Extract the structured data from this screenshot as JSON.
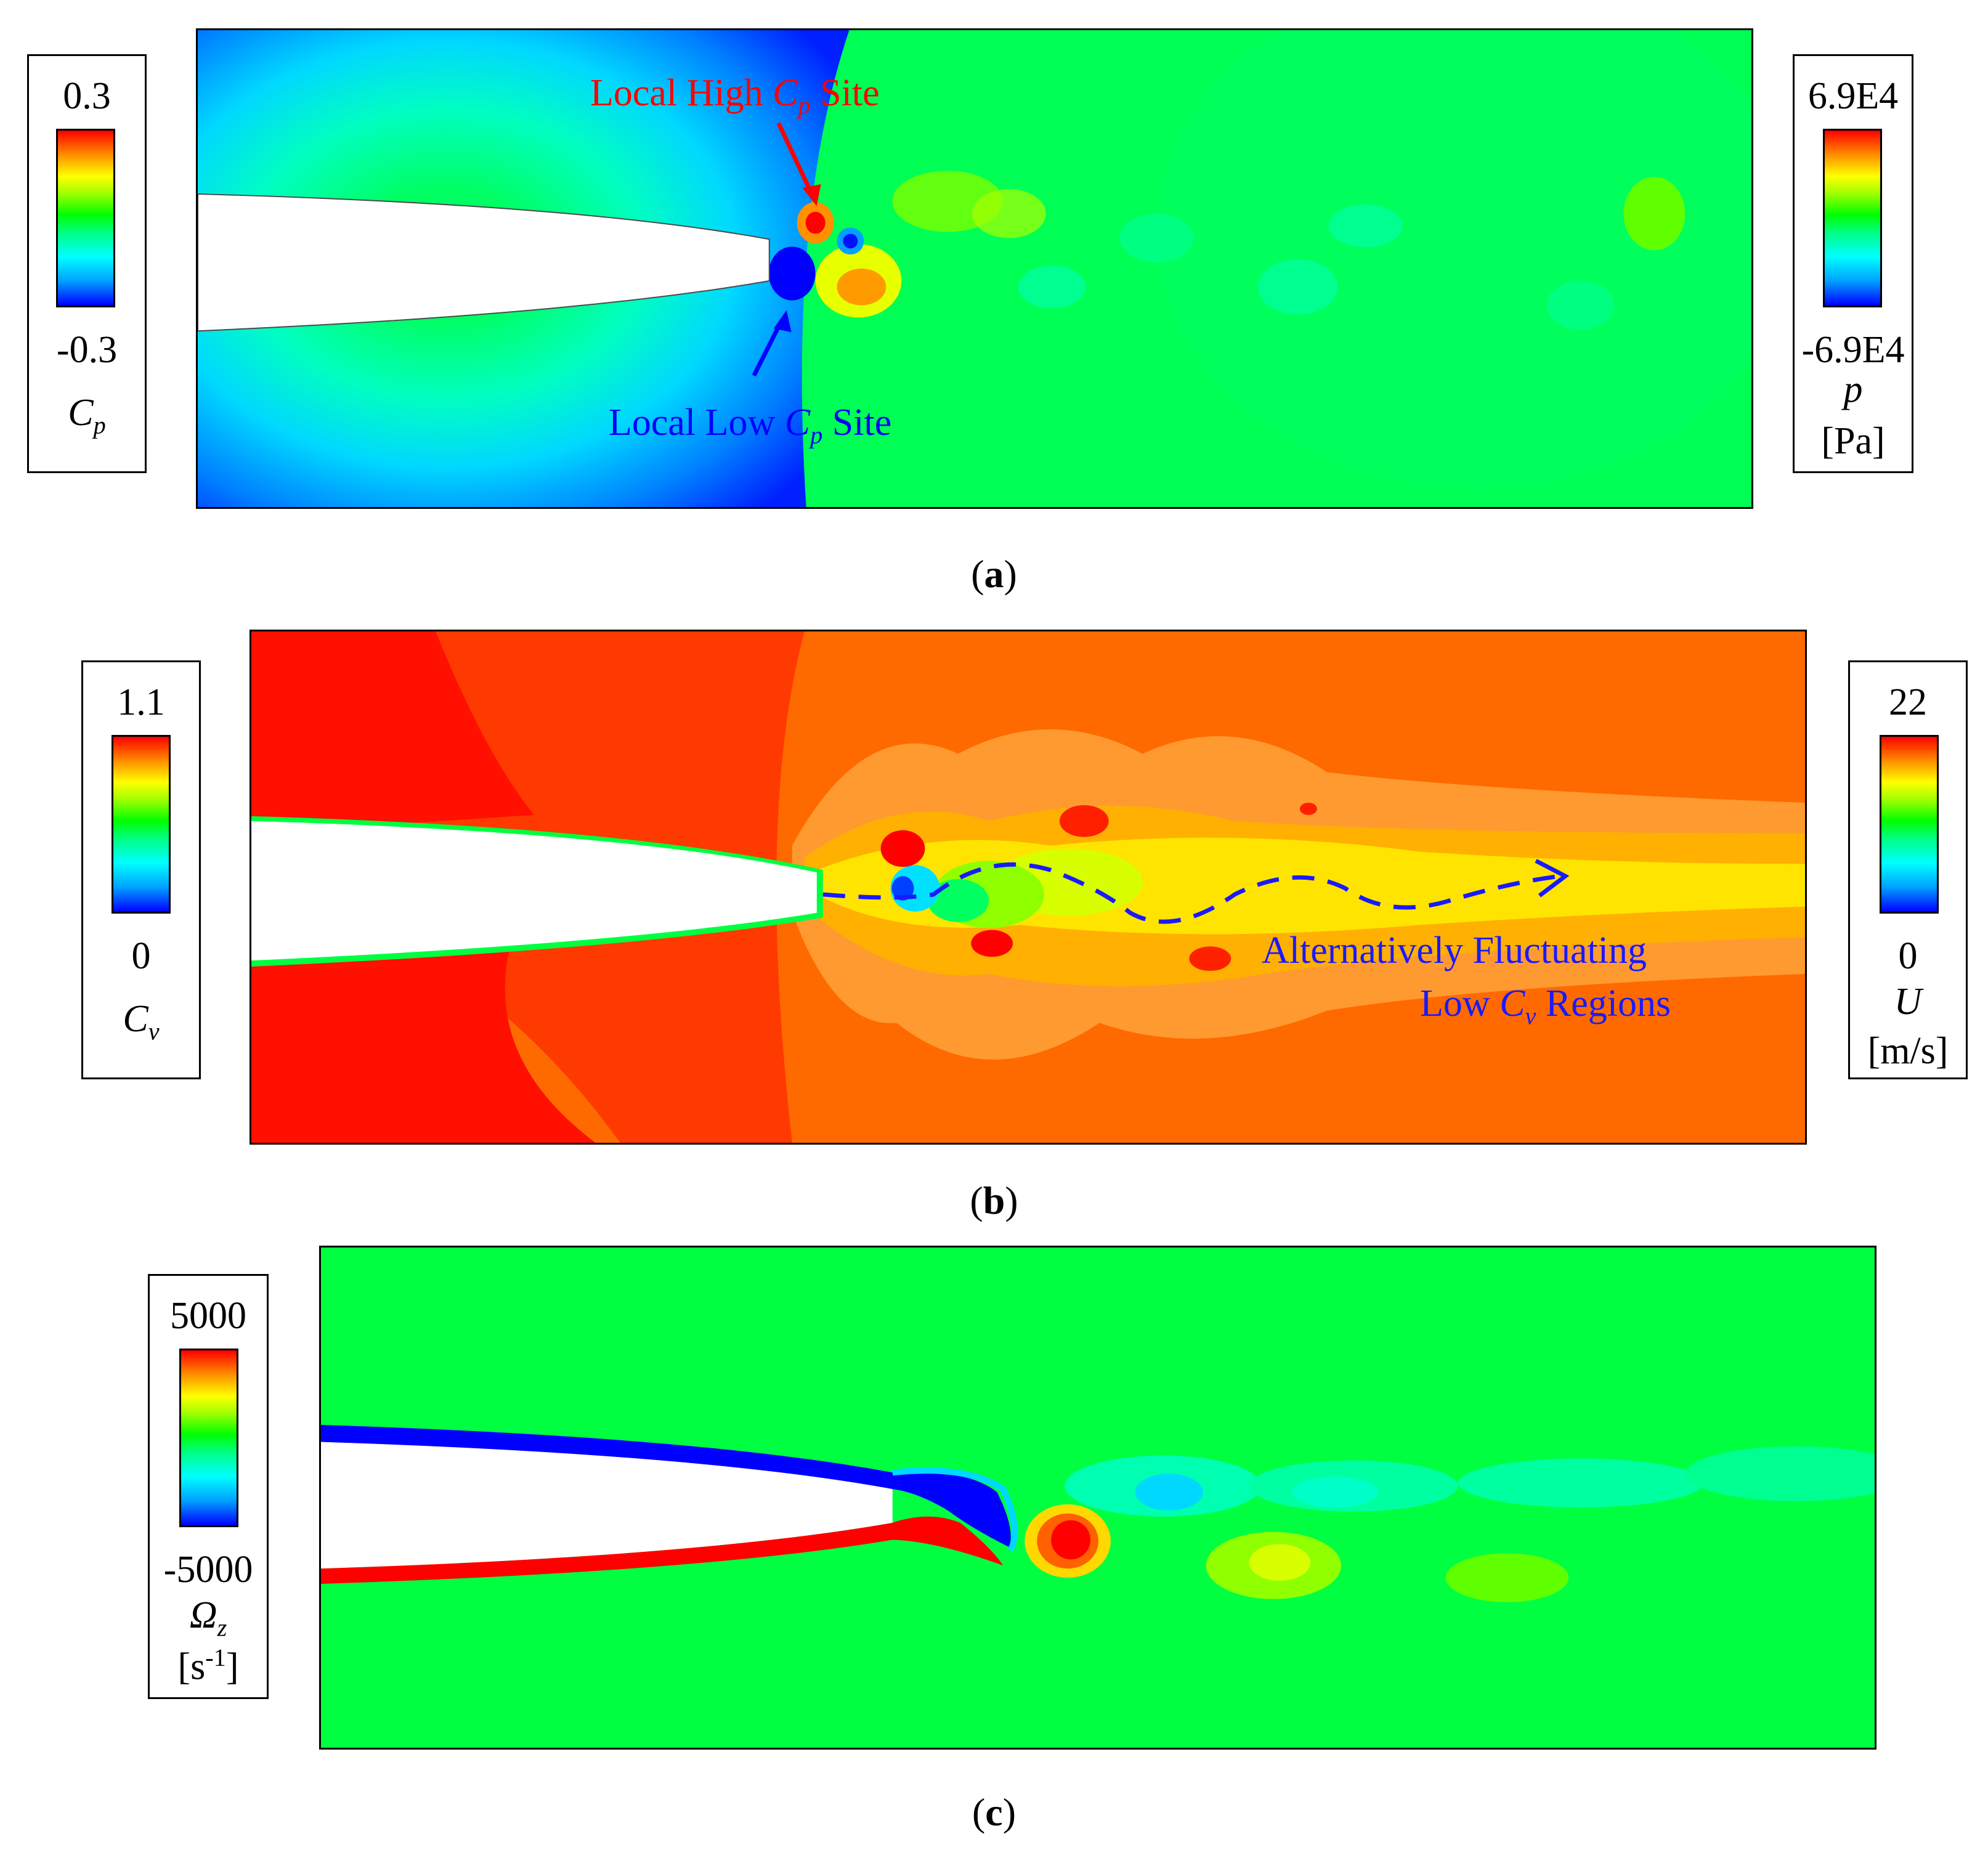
{
  "panel_a": {
    "caption_letter": "a",
    "legend_left": {
      "max": "0.3",
      "min": "-0.3",
      "symbol": "C",
      "symbol_sub": "p"
    },
    "legend_right": {
      "max": "6.9E4",
      "min": "-6.9E4",
      "symbol": "p",
      "unit": "[Pa]"
    },
    "annotation_high": {
      "prefix": "Local High ",
      "symbol": "C",
      "sub": "p",
      "suffix": " Site",
      "color": "#ff0000"
    },
    "annotation_low": {
      "prefix": "Local Low ",
      "symbol": "C",
      "sub": "p",
      "suffix": " Site",
      "color": "#0000ff"
    }
  },
  "panel_b": {
    "caption_letter": "b",
    "legend_left": {
      "max": "1.1",
      "min": "0",
      "symbol": "C",
      "symbol_sub": "v"
    },
    "legend_right": {
      "max": "22",
      "min": "0",
      "symbol": "U",
      "unit": "[m/s]"
    },
    "annotation": {
      "line1": "Alternatively Fluctuating",
      "line2_prefix": "Low ",
      "symbol": "C",
      "sub": "v",
      "line2_suffix": " Regions",
      "color": "#1a1aff"
    }
  },
  "panel_c": {
    "caption_letter": "c",
    "legend": {
      "max": "5000",
      "min": "-5000",
      "symbol": "Ω",
      "symbol_sub": "z",
      "unit_prefix": "[s",
      "unit_sup": "-1",
      "unit_suffix": "]"
    }
  }
}
